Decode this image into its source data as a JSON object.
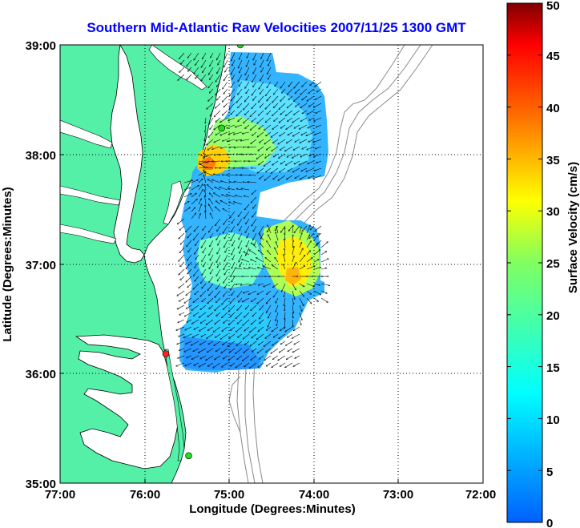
{
  "title": "Southern Mid-Atlantic Raw Velocities 2007/11/25 1300 GMT",
  "x_axis": {
    "label": "Longitude (Degrees:Minutes)",
    "ticks": [
      "77:00",
      "76:00",
      "75:00",
      "74:00",
      "73:00",
      "72:00"
    ]
  },
  "y_axis": {
    "label": "Latitude (Degrees:Minutes)",
    "ticks": [
      "39:00",
      "38:00",
      "37:00",
      "36:00",
      "35:00"
    ]
  },
  "colorbar": {
    "label": "Surface Velocity (cm/s)",
    "ticks": [
      "0",
      "5",
      "10",
      "15",
      "20",
      "25",
      "30",
      "35",
      "40",
      "45",
      "50"
    ],
    "min": 0,
    "max": 50
  },
  "chart_data": {
    "type": "map",
    "lon_range": [
      -77,
      -72
    ],
    "lat_range": [
      35,
      39
    ],
    "grid": true,
    "land_color": "#55f0a8",
    "sites": [
      {
        "lon": -74.87,
        "lat": 39.0,
        "color": "#22dd22"
      },
      {
        "lon": -75.09,
        "lat": 38.24,
        "color": "#22dd22"
      },
      {
        "lon": -75.75,
        "lat": 36.18,
        "color": "#ff2222"
      },
      {
        "lon": -75.48,
        "lat": 35.25,
        "color": "#22dd22"
      }
    ]
  }
}
